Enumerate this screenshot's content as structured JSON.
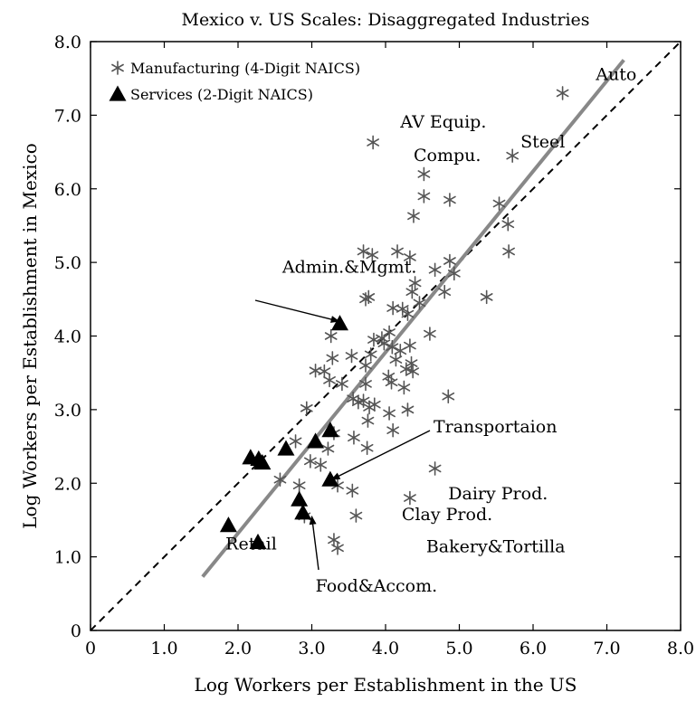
{
  "chart_data": {
    "type": "scatter",
    "title": "Mexico v. US Scales: Disaggregated Industries",
    "xlabel": "Log Workers per Establishment in the US",
    "ylabel": "Log Workers per Establishment in Mexico",
    "xlim": [
      0,
      8
    ],
    "ylim": [
      0,
      8
    ],
    "xticks": [
      "0",
      "1.0",
      "2.0",
      "3.0",
      "4.0",
      "5.0",
      "6.0",
      "7.0",
      "8.0"
    ],
    "yticks": [
      "0",
      "1.0",
      "2.0",
      "3.0",
      "4.0",
      "5.0",
      "6.0",
      "7.0",
      "8.0"
    ],
    "legend": {
      "position": "top-left",
      "entries": [
        {
          "marker": "asterisk",
          "label": "Manufacturing (4-Digit NAICS)"
        },
        {
          "marker": "triangle",
          "label": "Services (2-Digit NAICS)"
        }
      ]
    },
    "series": [
      {
        "name": "Manufacturing (4-Digit NAICS)",
        "marker": "asterisk",
        "color": "#555555",
        "points": [
          [
            6.4,
            7.3
          ],
          [
            3.83,
            6.63
          ],
          [
            5.72,
            6.45
          ],
          [
            4.52,
            6.2
          ],
          [
            4.52,
            5.9
          ],
          [
            4.87,
            5.85
          ],
          [
            4.38,
            5.63
          ],
          [
            5.54,
            5.8
          ],
          [
            5.66,
            5.52
          ],
          [
            5.67,
            5.15
          ],
          [
            3.7,
            5.15
          ],
          [
            3.82,
            5.1
          ],
          [
            4.16,
            5.15
          ],
          [
            4.33,
            5.07
          ],
          [
            4.87,
            5.02
          ],
          [
            4.67,
            4.9
          ],
          [
            4.93,
            4.85
          ],
          [
            5.37,
            4.53
          ],
          [
            3.73,
            4.5
          ],
          [
            3.77,
            4.53
          ],
          [
            4.4,
            4.72
          ],
          [
            4.36,
            4.6
          ],
          [
            4.8,
            4.6
          ],
          [
            4.46,
            4.45
          ],
          [
            4.1,
            4.38
          ],
          [
            4.23,
            4.37
          ],
          [
            4.3,
            4.3
          ],
          [
            4.6,
            4.03
          ],
          [
            4.05,
            4.05
          ],
          [
            3.95,
            3.97
          ],
          [
            3.84,
            3.95
          ],
          [
            3.98,
            3.9
          ],
          [
            4.09,
            3.85
          ],
          [
            4.33,
            3.87
          ],
          [
            4.2,
            3.8
          ],
          [
            3.26,
            4.0
          ],
          [
            3.54,
            3.73
          ],
          [
            3.8,
            3.75
          ],
          [
            4.14,
            3.68
          ],
          [
            3.73,
            3.6
          ],
          [
            3.17,
            3.52
          ],
          [
            3.28,
            3.7
          ],
          [
            3.05,
            3.53
          ],
          [
            4.35,
            3.63
          ],
          [
            4.28,
            3.55
          ],
          [
            4.37,
            3.52
          ],
          [
            4.04,
            3.45
          ],
          [
            4.08,
            3.37
          ],
          [
            3.24,
            3.4
          ],
          [
            3.41,
            3.35
          ],
          [
            3.73,
            3.35
          ],
          [
            4.25,
            3.3
          ],
          [
            3.56,
            3.15
          ],
          [
            3.63,
            3.1
          ],
          [
            3.7,
            3.12
          ],
          [
            3.85,
            3.07
          ],
          [
            3.78,
            3.03
          ],
          [
            2.93,
            3.02
          ],
          [
            4.05,
            2.95
          ],
          [
            4.3,
            3.0
          ],
          [
            4.85,
            3.18
          ],
          [
            3.76,
            2.85
          ],
          [
            3.3,
            2.68
          ],
          [
            4.1,
            2.72
          ],
          [
            2.78,
            2.57
          ],
          [
            3.57,
            2.62
          ],
          [
            3.75,
            2.48
          ],
          [
            3.22,
            2.47
          ],
          [
            2.98,
            2.3
          ],
          [
            3.12,
            2.25
          ],
          [
            2.57,
            2.05
          ],
          [
            2.83,
            1.97
          ],
          [
            3.35,
            1.97
          ],
          [
            3.55,
            1.9
          ],
          [
            4.67,
            2.2
          ],
          [
            4.33,
            1.8
          ],
          [
            3.6,
            1.56
          ],
          [
            2.9,
            1.55
          ],
          [
            3.3,
            1.23
          ],
          [
            3.35,
            1.12
          ]
        ]
      },
      {
        "name": "Services (2-Digit NAICS)",
        "marker": "triangle",
        "color": "#000000",
        "points": [
          [
            3.38,
            4.17
          ],
          [
            2.17,
            2.35
          ],
          [
            2.28,
            2.33
          ],
          [
            2.33,
            2.28
          ],
          [
            2.65,
            2.47
          ],
          [
            3.05,
            2.57
          ],
          [
            3.25,
            2.72
          ],
          [
            3.25,
            2.05
          ],
          [
            2.83,
            1.78
          ],
          [
            2.88,
            1.6
          ],
          [
            1.87,
            1.43
          ],
          [
            2.27,
            1.2
          ]
        ]
      }
    ],
    "reference_lines": [
      {
        "type": "45-degree line",
        "style": "dashed",
        "color": "#000000",
        "from": [
          0,
          0
        ],
        "to": [
          8,
          8
        ]
      },
      {
        "type": "fitted line",
        "style": "solid",
        "color": "#888888",
        "from": [
          1.52,
          0.73
        ],
        "to": [
          7.23,
          7.75
        ]
      }
    ],
    "annotations": [
      {
        "text": "Auto",
        "x": 6.85,
        "y": 7.48
      },
      {
        "text": "AV Equip.",
        "x": 4.2,
        "y": 6.83
      },
      {
        "text": "Steel",
        "x": 5.83,
        "y": 6.56
      },
      {
        "text": "Compu.",
        "x": 4.38,
        "y": 6.38
      },
      {
        "text": "Admin.&Mgmt.",
        "x": 2.6,
        "y": 4.86,
        "arrow_to": [
          3.37,
          4.2
        ]
      },
      {
        "text": "Transportaion",
        "x": 4.65,
        "y": 2.69,
        "arrow_to": [
          3.27,
          2.05
        ]
      },
      {
        "text": "Dairy Prod.",
        "x": 4.85,
        "y": 1.78
      },
      {
        "text": "Clay Prod.",
        "x": 4.22,
        "y": 1.5
      },
      {
        "text": "Bakery&Tortilla",
        "x": 4.55,
        "y": 1.06
      },
      {
        "text": "Retail",
        "x": 1.83,
        "y": 1.1
      },
      {
        "text": "Food&Accom.",
        "x": 3.05,
        "y": 0.53,
        "arrow_to": [
          3.0,
          1.55
        ]
      }
    ]
  }
}
